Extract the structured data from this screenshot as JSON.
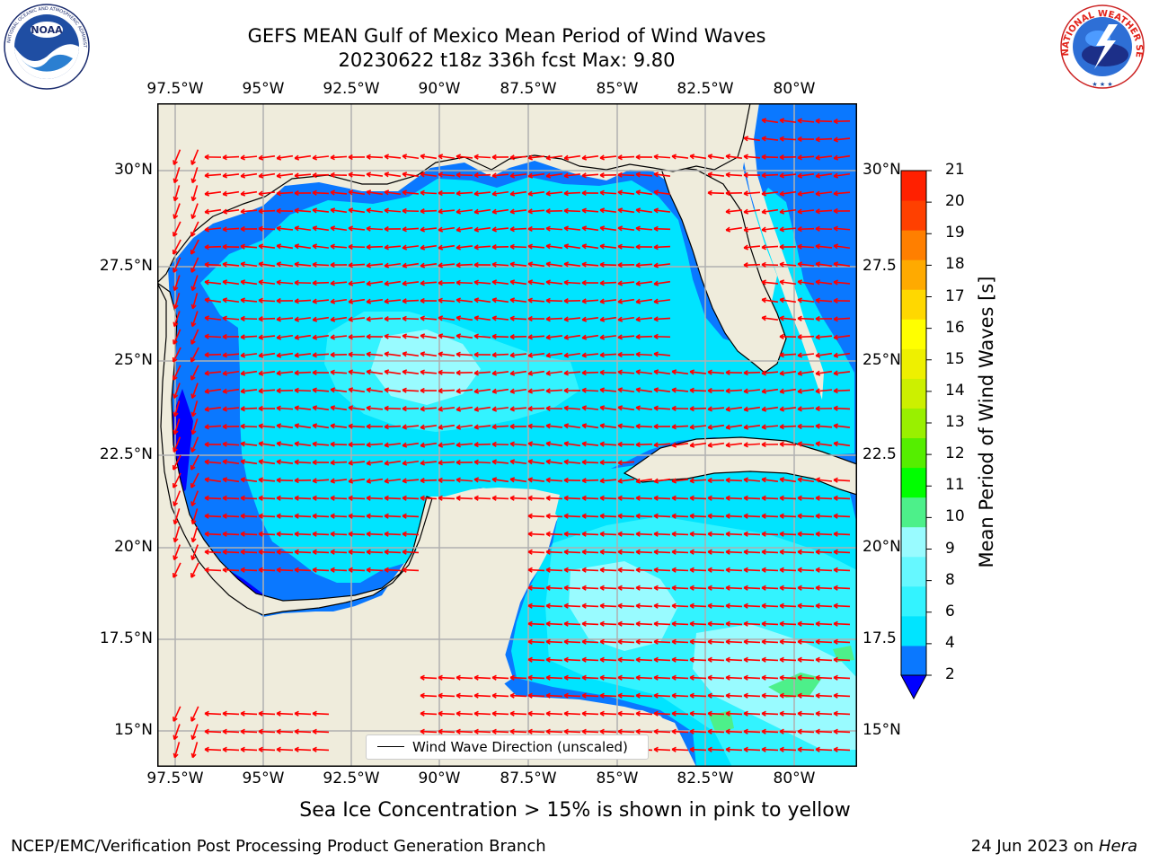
{
  "title": {
    "line1": "GEFS MEAN Gulf of Mexico Mean Period of Wind Waves",
    "line2": "20230622 t18z 336h fcst   Max: 9.80"
  },
  "logos": {
    "noaa": {
      "text": "NOAA",
      "ring": "NATIONAL OCEANIC AND ATMOSPHERIC ADMINISTRATION · U.S. DEPARTMENT OF COMMERCE"
    },
    "nws": {
      "ring": "NATIONAL WEATHER SERVICE"
    }
  },
  "axes": {
    "lon_ticks": [
      "97.5°W",
      "95°W",
      "92.5°W",
      "90°W",
      "87.5°W",
      "85°W",
      "82.5°W",
      "80°W"
    ],
    "lat_ticks": [
      "30°N",
      "27.5°N",
      "25°N",
      "22.5°N",
      "20°N",
      "17.5°N",
      "15°N"
    ],
    "lat_ticks_right": [
      "30°N",
      "27.5",
      "25°N",
      "22.5",
      "20°N",
      "17.5",
      "15°N"
    ]
  },
  "colorbar": {
    "label": "Mean Period of Wind Waves [s]",
    "ticks": [
      "2",
      "4",
      "6",
      "8",
      "9",
      "10",
      "11",
      "12",
      "13",
      "14",
      "15",
      "16",
      "17",
      "18",
      "19",
      "20",
      "21"
    ],
    "colors": [
      "#0a78ff",
      "#00e4ff",
      "#33f3ff",
      "#66f8ff",
      "#99fbff",
      "#4df08a",
      "#00ff00",
      "#55ee00",
      "#99f000",
      "#ccf000",
      "#eef000",
      "#ffff00",
      "#ffd800",
      "#ffaa00",
      "#ff7f00",
      "#ff4000",
      "#ff1000",
      "#ff0000"
    ],
    "under_color": "#0000ff"
  },
  "legend": {
    "label": "Wind Wave Direction (unscaled)"
  },
  "colors": {
    "land": "#efecdc",
    "coast": "#000000",
    "arrow": "#ff0000",
    "grid": "#b0b0b0",
    "period_2_4": "#0a78ff",
    "period_4_6": "#00e4ff",
    "period_6_8": "#33f3ff",
    "period_8_9": "#99fbff",
    "period_9_10": "#4df08a",
    "period_under_2": "#0000ff"
  },
  "note": "Sea Ice Concentration > 15% is shown in pink to yellow",
  "footer": {
    "left": "NCEP/EMC/Verification Post Processing Product Generation Branch",
    "right_date": "24 Jun 2023 on ",
    "right_machine": "Hera"
  }
}
